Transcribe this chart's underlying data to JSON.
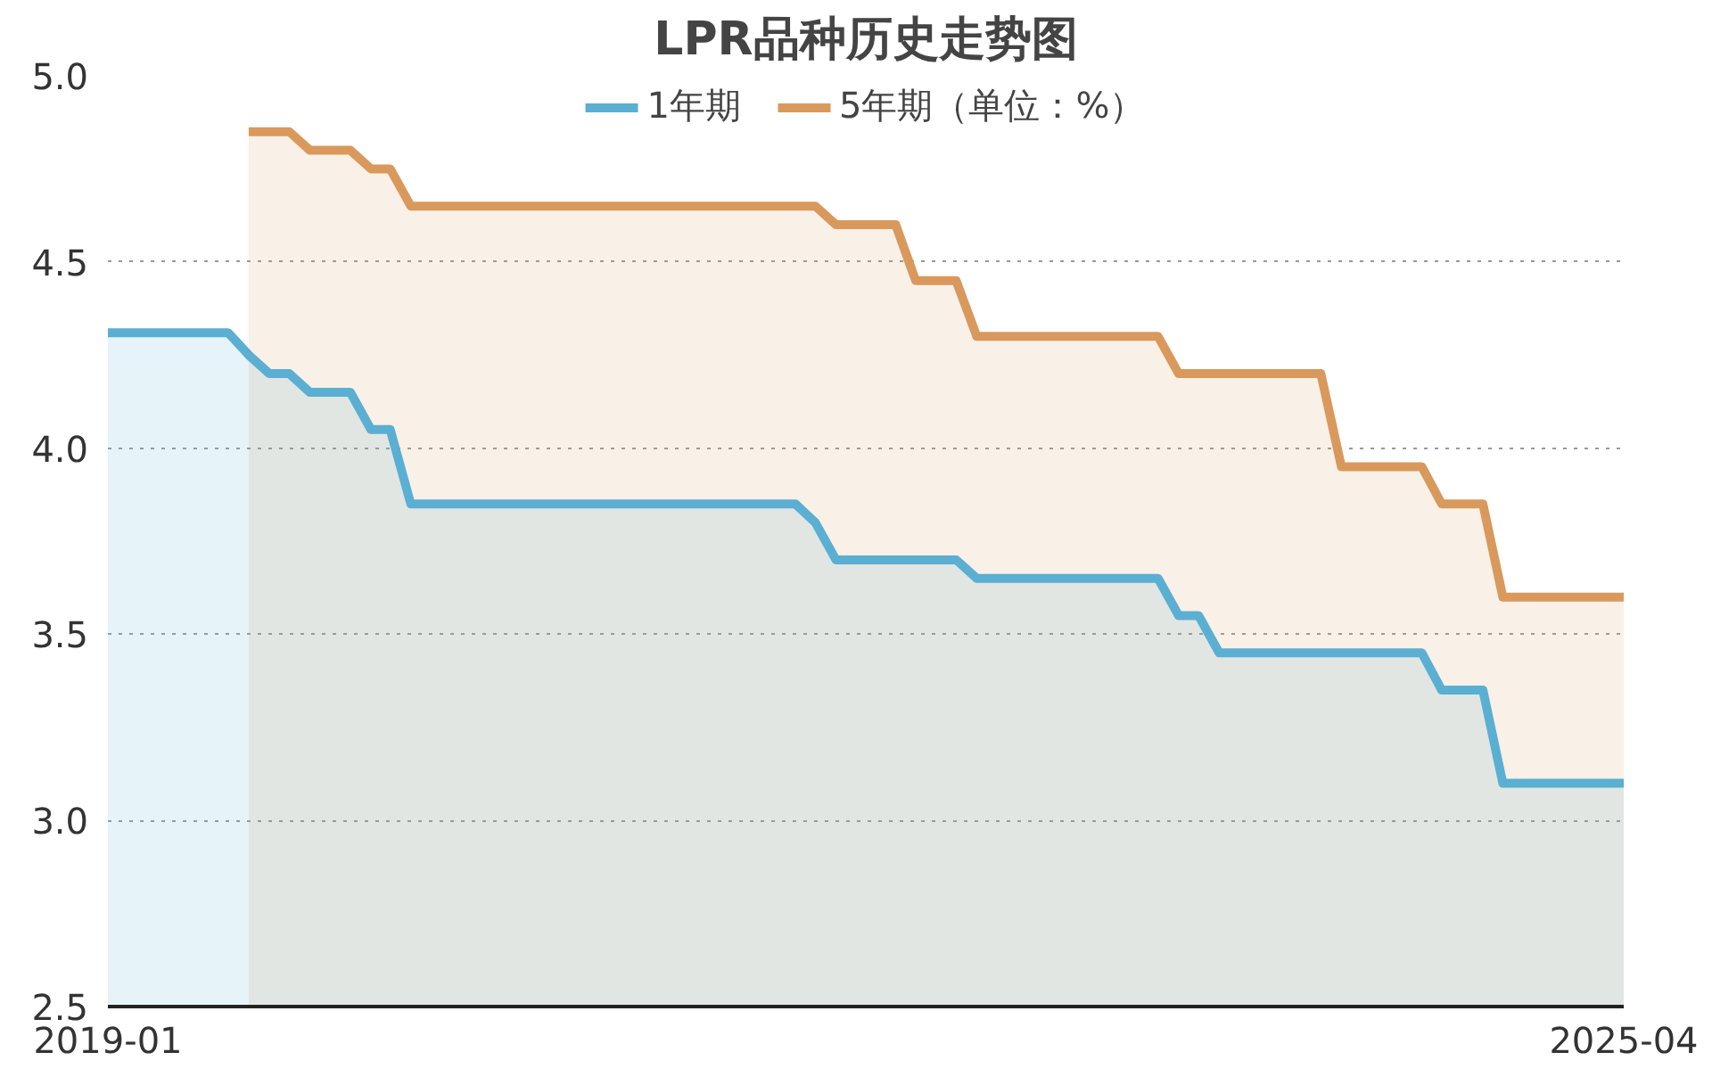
{
  "chart_data": {
    "type": "area",
    "title": "LPR品种历史走势图",
    "ylim": [
      2.5,
      5.0
    ],
    "yticks": [
      {
        "value": 2.5,
        "label": "2.5"
      },
      {
        "value": 3.0,
        "label": "3.0"
      },
      {
        "value": 3.5,
        "label": "3.5"
      },
      {
        "value": 4.0,
        "label": "4.0"
      },
      {
        "value": 4.5,
        "label": "4.5"
      },
      {
        "value": 5.0,
        "label": "5.0"
      }
    ],
    "xlim": [
      "2019-01",
      "2025-04"
    ],
    "xticks": [
      {
        "value": "2019-01",
        "label": "2019-01"
      },
      {
        "value": "2025-04",
        "label": "2025-04"
      }
    ],
    "grid": "y",
    "legend": "top",
    "line_style": "solid",
    "marker": "none",
    "x": [
      "2019-01",
      "2019-02",
      "2019-03",
      "2019-04",
      "2019-05",
      "2019-06",
      "2019-07",
      "2019-08",
      "2019-09",
      "2019-10",
      "2019-11",
      "2019-12",
      "2020-01",
      "2020-02",
      "2020-03",
      "2020-04",
      "2020-05",
      "2020-06",
      "2020-07",
      "2020-08",
      "2020-09",
      "2020-10",
      "2020-11",
      "2020-12",
      "2021-01",
      "2021-02",
      "2021-03",
      "2021-04",
      "2021-05",
      "2021-06",
      "2021-07",
      "2021-08",
      "2021-09",
      "2021-10",
      "2021-11",
      "2021-12",
      "2022-01",
      "2022-02",
      "2022-03",
      "2022-04",
      "2022-05",
      "2022-06",
      "2022-07",
      "2022-08",
      "2022-09",
      "2022-10",
      "2022-11",
      "2022-12",
      "2023-01",
      "2023-02",
      "2023-03",
      "2023-04",
      "2023-05",
      "2023-06",
      "2023-07",
      "2023-08",
      "2023-09",
      "2023-10",
      "2023-11",
      "2023-12",
      "2024-01",
      "2024-02",
      "2024-03",
      "2024-04",
      "2024-05",
      "2024-06",
      "2024-07",
      "2024-08",
      "2024-09",
      "2024-10",
      "2024-11",
      "2024-12",
      "2025-01",
      "2025-02",
      "2025-03",
      "2025-04"
    ],
    "series": [
      {
        "name": "1年期",
        "color": "#5aafd2",
        "values": [
          4.31,
          4.31,
          4.31,
          4.31,
          4.31,
          4.31,
          4.31,
          4.25,
          4.2,
          4.2,
          4.15,
          4.15,
          4.15,
          4.05,
          4.05,
          3.85,
          3.85,
          3.85,
          3.85,
          3.85,
          3.85,
          3.85,
          3.85,
          3.85,
          3.85,
          3.85,
          3.85,
          3.85,
          3.85,
          3.85,
          3.85,
          3.85,
          3.85,
          3.85,
          3.85,
          3.8,
          3.7,
          3.7,
          3.7,
          3.7,
          3.7,
          3.7,
          3.7,
          3.65,
          3.65,
          3.65,
          3.65,
          3.65,
          3.65,
          3.65,
          3.65,
          3.65,
          3.65,
          3.55,
          3.55,
          3.45,
          3.45,
          3.45,
          3.45,
          3.45,
          3.45,
          3.45,
          3.45,
          3.45,
          3.45,
          3.45,
          3.35,
          3.35,
          3.35,
          3.1,
          3.1,
          3.1,
          3.1,
          3.1,
          3.1,
          3.1
        ]
      },
      {
        "name": "5年期（单位：%）",
        "color": "#d9995c",
        "values": [
          null,
          null,
          null,
          null,
          null,
          null,
          null,
          4.85,
          4.85,
          4.85,
          4.8,
          4.8,
          4.8,
          4.75,
          4.75,
          4.65,
          4.65,
          4.65,
          4.65,
          4.65,
          4.65,
          4.65,
          4.65,
          4.65,
          4.65,
          4.65,
          4.65,
          4.65,
          4.65,
          4.65,
          4.65,
          4.65,
          4.65,
          4.65,
          4.65,
          4.65,
          4.6,
          4.6,
          4.6,
          4.6,
          4.45,
          4.45,
          4.45,
          4.3,
          4.3,
          4.3,
          4.3,
          4.3,
          4.3,
          4.3,
          4.3,
          4.3,
          4.3,
          4.2,
          4.2,
          4.2,
          4.2,
          4.2,
          4.2,
          4.2,
          4.2,
          3.95,
          3.95,
          3.95,
          3.95,
          3.95,
          3.85,
          3.85,
          3.85,
          3.6,
          3.6,
          3.6,
          3.6,
          3.6,
          3.6,
          3.6
        ]
      }
    ]
  }
}
